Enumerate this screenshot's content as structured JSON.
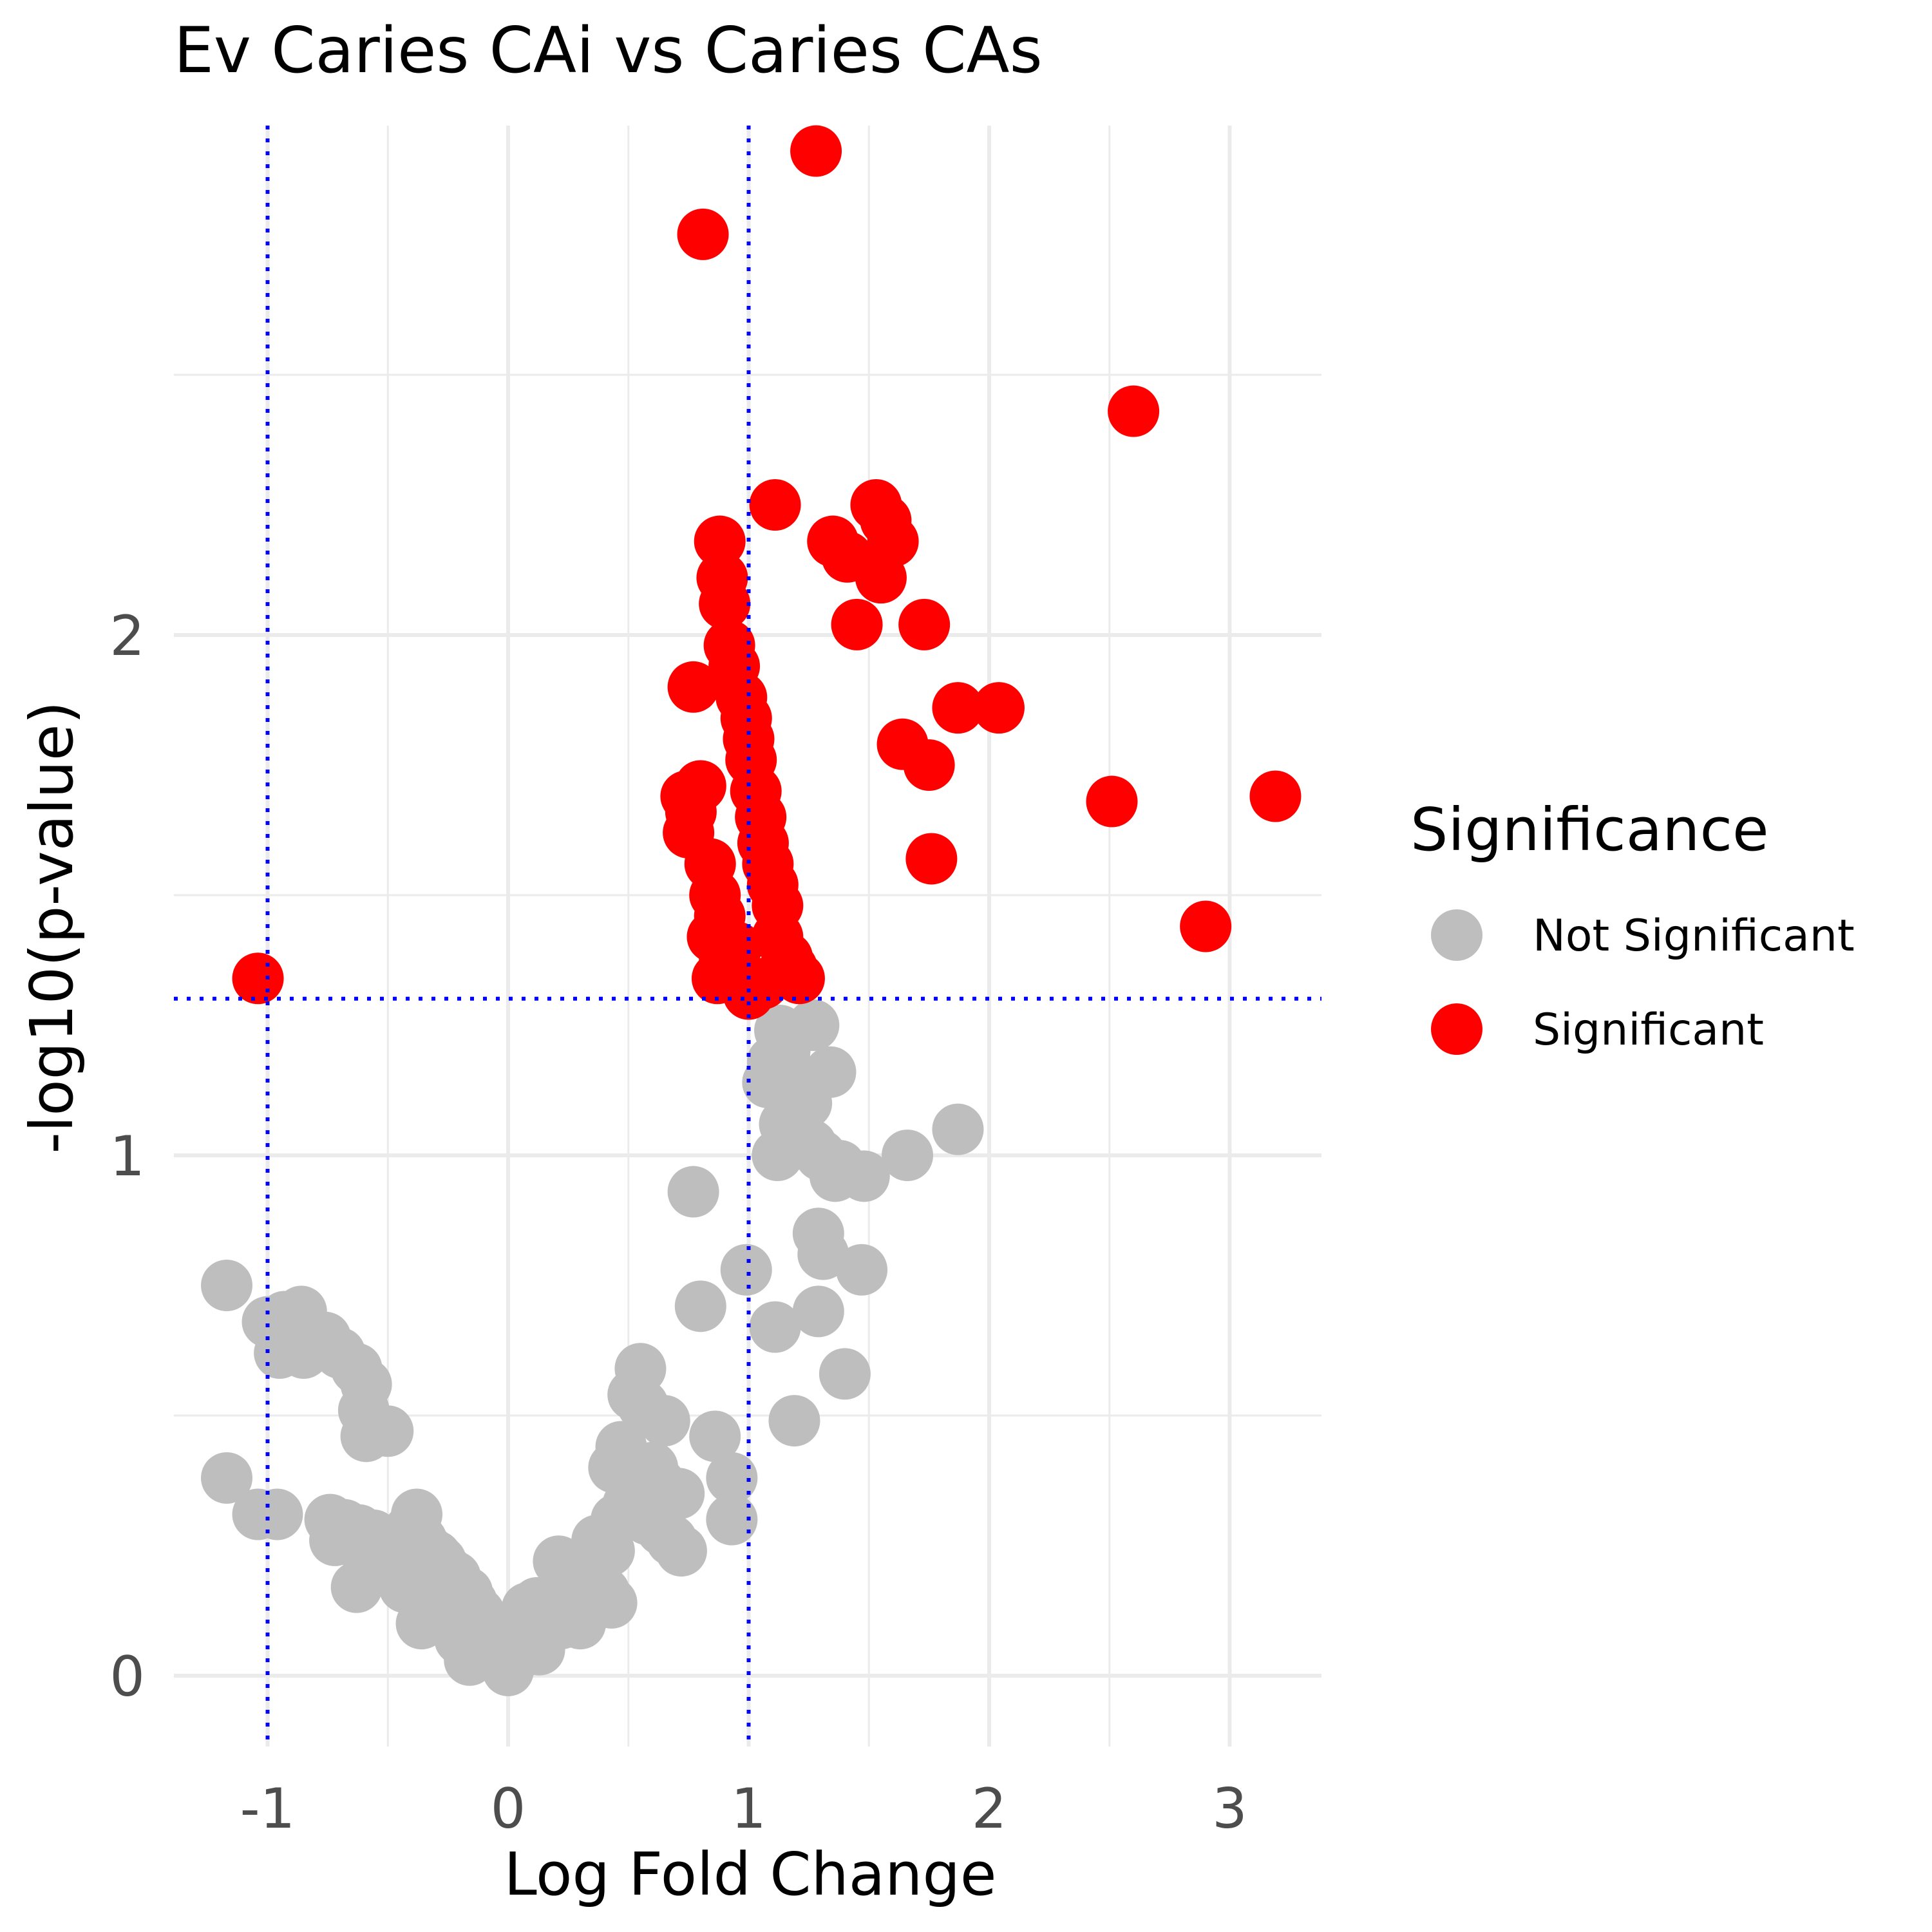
{
  "chart_data": {
    "type": "scatter",
    "title": "Ev Caries CAi vs Caries CAs",
    "xlabel": "Log Fold Change",
    "ylabel": "-log10(p-value)",
    "xlim": [
      -1.38,
      3.4
    ],
    "ylim": [
      -0.13,
      3.0
    ],
    "x_ticks": [
      -1,
      0,
      1,
      2,
      3
    ],
    "x_tick_labels": [
      "-1",
      "0",
      "1",
      "2",
      "3"
    ],
    "y_ticks": [
      0,
      1,
      2
    ],
    "y_tick_labels": [
      "0",
      "1",
      "2"
    ],
    "grid": true,
    "thresholds": {
      "log_fold_change": [
        -1,
        1
      ],
      "neg_log10_p": 1.301,
      "line_style": "dotted",
      "line_color": "#0000ff"
    },
    "legend": {
      "title": "Significance",
      "position": "right",
      "entries": [
        {
          "label": "Not Significant",
          "color": "#bebebe"
        },
        {
          "label": "Significant",
          "color": "#ff0000"
        }
      ]
    },
    "series": [
      {
        "name": "Significant",
        "color": "#ff0000",
        "points": [
          [
            1.28,
            2.93
          ],
          [
            0.81,
            2.77
          ],
          [
            2.6,
            2.43
          ],
          [
            1.11,
            2.25
          ],
          [
            1.53,
            2.25
          ],
          [
            1.57,
            2.22
          ],
          [
            1.6,
            2.18
          ],
          [
            1.35,
            2.18
          ],
          [
            1.41,
            2.15
          ],
          [
            1.55,
            2.11
          ],
          [
            0.88,
            2.18
          ],
          [
            0.89,
            2.11
          ],
          [
            0.9,
            2.06
          ],
          [
            1.45,
            2.02
          ],
          [
            1.73,
            2.02
          ],
          [
            0.92,
            1.98
          ],
          [
            0.94,
            1.94
          ],
          [
            0.77,
            1.9
          ],
          [
            0.97,
            1.88
          ],
          [
            0.99,
            1.84
          ],
          [
            1.0,
            1.8
          ],
          [
            1.01,
            1.76
          ],
          [
            1.87,
            1.86
          ],
          [
            2.04,
            1.86
          ],
          [
            1.64,
            1.79
          ],
          [
            1.75,
            1.75
          ],
          [
            0.8,
            1.71
          ],
          [
            0.74,
            1.69
          ],
          [
            0.76,
            1.66
          ],
          [
            0.75,
            1.62
          ],
          [
            1.03,
            1.7
          ],
          [
            1.05,
            1.65
          ],
          [
            1.06,
            1.6
          ],
          [
            1.08,
            1.56
          ],
          [
            1.1,
            1.52
          ],
          [
            1.12,
            1.48
          ],
          [
            0.84,
            1.56
          ],
          [
            0.86,
            1.5
          ],
          [
            0.88,
            1.46
          ],
          [
            0.85,
            1.42
          ],
          [
            0.9,
            1.38
          ],
          [
            0.87,
            1.34
          ],
          [
            0.92,
            1.36
          ],
          [
            0.95,
            1.4
          ],
          [
            1.12,
            1.42
          ],
          [
            1.16,
            1.38
          ],
          [
            1.18,
            1.36
          ],
          [
            1.21,
            1.34
          ],
          [
            1.0,
            1.31
          ],
          [
            1.06,
            1.33
          ],
          [
            2.51,
            1.68
          ],
          [
            3.19,
            1.69
          ],
          [
            1.76,
            1.57
          ],
          [
            2.9,
            1.44
          ],
          [
            -1.04,
            1.34
          ]
        ]
      },
      {
        "name": "Not Significant",
        "color": "#bebebe",
        "points": [
          [
            1.27,
            1.25
          ],
          [
            1.15,
            1.2
          ],
          [
            1.13,
            1.24
          ],
          [
            1.1,
            1.18
          ],
          [
            1.2,
            1.14
          ],
          [
            1.24,
            1.1
          ],
          [
            1.08,
            1.14
          ],
          [
            1.34,
            1.16
          ],
          [
            1.15,
            1.06
          ],
          [
            1.26,
            1.02
          ],
          [
            1.3,
            1.0
          ],
          [
            1.12,
            1.0
          ],
          [
            1.38,
            0.98
          ],
          [
            1.36,
            0.96
          ],
          [
            1.48,
            0.96
          ],
          [
            1.66,
            1.0
          ],
          [
            1.87,
            1.05
          ],
          [
            0.77,
            0.93
          ],
          [
            1.29,
            0.85
          ],
          [
            1.31,
            0.81
          ],
          [
            1.47,
            0.78
          ],
          [
            0.99,
            0.78
          ],
          [
            0.8,
            0.71
          ],
          [
            1.29,
            0.7
          ],
          [
            1.11,
            0.67
          ],
          [
            1.4,
            0.58
          ],
          [
            1.19,
            0.49
          ],
          [
            0.93,
            0.38
          ],
          [
            0.86,
            0.46
          ],
          [
            0.93,
            0.3
          ],
          [
            0.55,
            0.59
          ],
          [
            0.52,
            0.54
          ],
          [
            0.56,
            0.52
          ],
          [
            0.65,
            0.49
          ],
          [
            0.47,
            0.44
          ],
          [
            0.44,
            0.4
          ],
          [
            0.6,
            0.4
          ],
          [
            0.63,
            0.37
          ],
          [
            0.71,
            0.35
          ],
          [
            0.5,
            0.33
          ],
          [
            0.58,
            0.3
          ],
          [
            0.64,
            0.28
          ],
          [
            0.68,
            0.26
          ],
          [
            0.72,
            0.24
          ],
          [
            0.45,
            0.3
          ],
          [
            0.37,
            0.26
          ],
          [
            0.42,
            0.24
          ],
          [
            0.3,
            0.2
          ],
          [
            0.25,
            0.18
          ],
          [
            0.4,
            0.16
          ],
          [
            0.21,
            0.22
          ],
          [
            0.35,
            0.19
          ],
          [
            0.43,
            0.14
          ],
          [
            0.3,
            0.1
          ],
          [
            0.12,
            0.14
          ],
          [
            0.18,
            0.12
          ],
          [
            0.22,
            0.1
          ],
          [
            0.08,
            0.13
          ],
          [
            0.1,
            0.08
          ],
          [
            0.13,
            0.05
          ],
          [
            0.05,
            0.05
          ],
          [
            0.02,
            0.03
          ],
          [
            0.0,
            0.01
          ],
          [
            -0.03,
            0.04
          ],
          [
            -0.05,
            0.06
          ],
          [
            -0.08,
            0.08
          ],
          [
            -0.1,
            0.1
          ],
          [
            -0.12,
            0.12
          ],
          [
            -0.15,
            0.14
          ],
          [
            -0.17,
            0.16
          ],
          [
            -0.2,
            0.17
          ],
          [
            -0.22,
            0.19
          ],
          [
            -0.25,
            0.2
          ],
          [
            -0.28,
            0.22
          ],
          [
            -0.3,
            0.23
          ],
          [
            -0.33,
            0.24
          ],
          [
            -0.36,
            0.26
          ],
          [
            -0.38,
            0.27
          ],
          [
            -0.41,
            0.28
          ],
          [
            -0.16,
            0.03
          ],
          [
            -0.2,
            0.07
          ],
          [
            -0.24,
            0.1
          ],
          [
            -0.28,
            0.12
          ],
          [
            -0.33,
            0.14
          ],
          [
            -0.36,
            0.1
          ],
          [
            -0.43,
            0.17
          ],
          [
            -0.48,
            0.2
          ],
          [
            -0.38,
            0.31
          ],
          [
            -0.52,
            0.21
          ],
          [
            -0.58,
            0.22
          ],
          [
            -0.63,
            0.17
          ],
          [
            -0.56,
            0.27
          ],
          [
            -0.62,
            0.28
          ],
          [
            -0.72,
            0.26
          ],
          [
            -0.74,
            0.3
          ],
          [
            -0.68,
            0.29
          ],
          [
            -0.96,
            0.31
          ],
          [
            -1.04,
            0.31
          ],
          [
            -1.17,
            0.38
          ],
          [
            -0.5,
            0.47
          ],
          [
            -0.59,
            0.46
          ],
          [
            -0.6,
            0.51
          ],
          [
            -0.59,
            0.56
          ],
          [
            -0.63,
            0.59
          ],
          [
            -0.7,
            0.62
          ],
          [
            -0.76,
            0.65
          ],
          [
            -0.87,
            0.66
          ],
          [
            -0.85,
            0.62
          ],
          [
            -0.95,
            0.62
          ],
          [
            -0.98,
            0.68
          ],
          [
            -1.0,
            0.68
          ],
          [
            -0.93,
            0.69
          ],
          [
            -0.86,
            0.7
          ],
          [
            -1.17,
            0.75
          ]
        ]
      }
    ]
  }
}
